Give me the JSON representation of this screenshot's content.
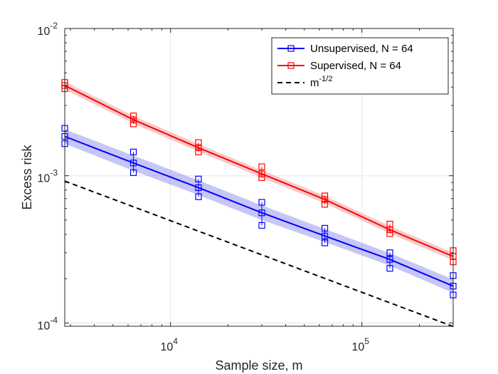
{
  "chart_data": {
    "type": "line",
    "xlabel": "Sample size, m",
    "ylabel": "Excess risk",
    "xscale": "log",
    "yscale": "log",
    "xlim": [
      2800,
      300000
    ],
    "ylim": [
      9.5e-05,
      0.01
    ],
    "grid": true,
    "legend_position": "top-right",
    "x_ticks": [
      {
        "value": 10000,
        "base": "10",
        "exp": "4"
      },
      {
        "value": 100000,
        "base": "10",
        "exp": "5"
      }
    ],
    "y_ticks": [
      {
        "value": 0.0001,
        "base": "10",
        "exp": "-4"
      },
      {
        "value": 0.001,
        "base": "10",
        "exp": "-3"
      },
      {
        "value": 0.01,
        "base": "10",
        "exp": "-2"
      }
    ],
    "series": [
      {
        "name": "Unsupervised, N = 64",
        "color": "#0000ff",
        "band_color": "#8080ee",
        "marker": "square",
        "x": [
          2800,
          6400,
          14000,
          30000,
          64000,
          140000,
          300000
        ],
        "y": [
          0.00185,
          0.00122,
          0.00083,
          0.00056,
          0.00039,
          0.00027,
          0.000178
        ],
        "band_low": [
          0.00165,
          0.00108,
          0.00074,
          0.0005,
          0.000355,
          0.000245,
          0.00016
        ],
        "band_high": [
          0.00207,
          0.00137,
          0.00093,
          0.00063,
          0.000435,
          0.000298,
          0.000198
        ],
        "trial_points": [
          [
            0.00165,
            0.00185,
            0.0021
          ],
          [
            0.00105,
            0.00122,
            0.00145
          ],
          [
            0.00072,
            0.00083,
            0.00095
          ],
          [
            0.00046,
            0.00056,
            0.00066
          ],
          [
            0.00035,
            0.00039,
            0.00044
          ],
          [
            0.000235,
            0.00027,
            0.0003
          ],
          [
            0.000155,
            0.000178,
            0.00021
          ]
        ]
      },
      {
        "name": "Supervised, N = 64",
        "color": "#ff0000",
        "band_color": "#ee8a8a",
        "marker": "square",
        "x": [
          2800,
          6400,
          14000,
          30000,
          64000,
          140000,
          300000
        ],
        "y": [
          0.0041,
          0.0024,
          0.00155,
          0.00103,
          0.00069,
          0.00043,
          0.000283
        ],
        "band_low": [
          0.00385,
          0.00226,
          0.00146,
          0.00097,
          0.00065,
          0.000405,
          0.000266
        ],
        "band_high": [
          0.00436,
          0.00255,
          0.00164,
          0.00109,
          0.00073,
          0.000456,
          0.0003
        ],
        "trial_points": [
          [
            0.0039,
            0.0041,
            0.0043
          ],
          [
            0.00225,
            0.0024,
            0.00255
          ],
          [
            0.00145,
            0.00155,
            0.00168
          ],
          [
            0.00097,
            0.00103,
            0.00115
          ],
          [
            0.00064,
            0.00069,
            0.00073
          ],
          [
            0.000405,
            0.00043,
            0.00047
          ],
          [
            0.00026,
            0.000283,
            0.00031
          ]
        ]
      },
      {
        "name": "m",
        "name_exponent": "-1/2",
        "color": "#000000",
        "dashed": true,
        "x": [
          2800,
          300000
        ],
        "y": [
          0.00092,
          9.47e-05
        ]
      }
    ]
  }
}
